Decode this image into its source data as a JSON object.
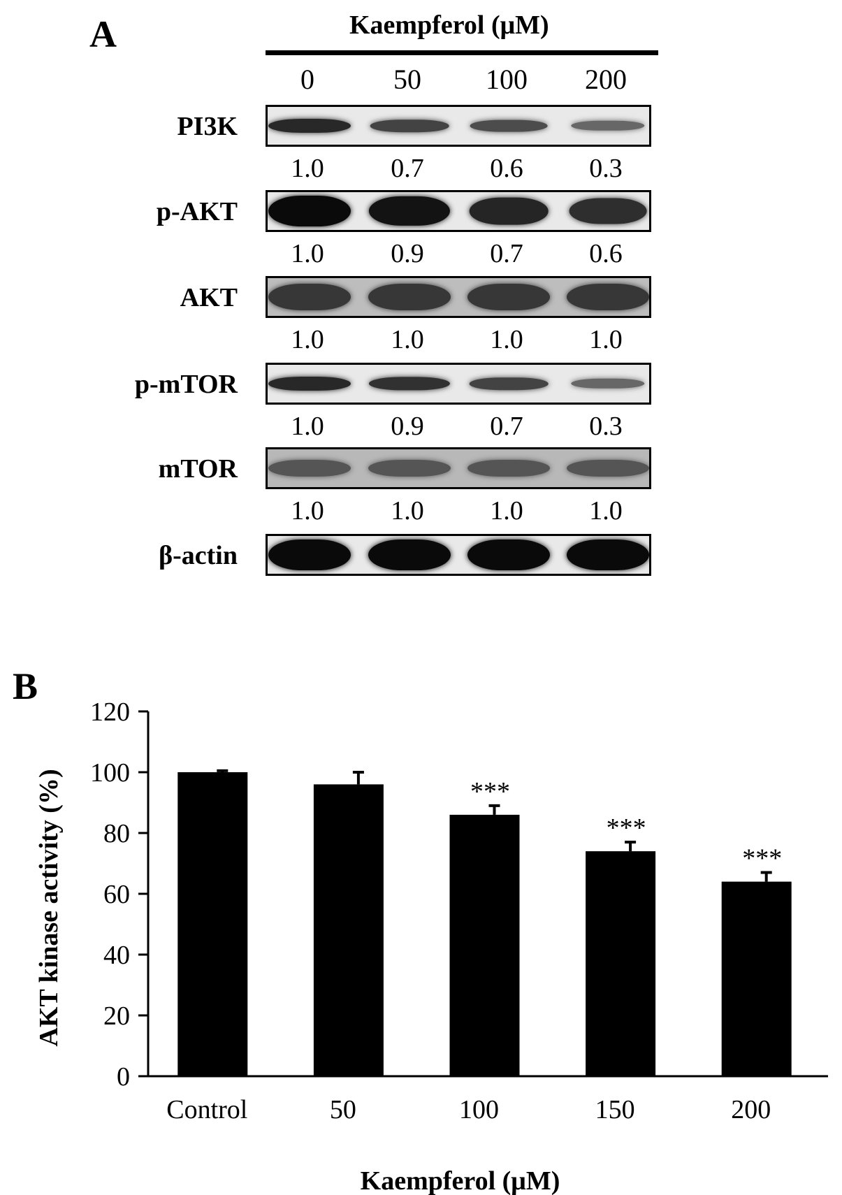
{
  "panel_a": {
    "label": "A",
    "header": "Kaempferol  (μM)",
    "lanes": [
      "0",
      "50",
      "100",
      "200"
    ],
    "rows": [
      {
        "protein": "PI3K",
        "ratios": [
          "1.0",
          "0.7",
          "0.6",
          "0.3"
        ],
        "intensity": [
          1.0,
          0.7,
          0.6,
          0.3
        ],
        "style": "thin"
      },
      {
        "protein": "p-AKT",
        "ratios": [
          "1.0",
          "0.9",
          "0.7",
          "0.6"
        ],
        "intensity": [
          1.0,
          0.9,
          0.7,
          0.6
        ],
        "style": "thick"
      },
      {
        "protein": "AKT",
        "ratios": [
          "1.0",
          "1.0",
          "1.0",
          "1.0"
        ],
        "intensity": [
          1.0,
          1.0,
          1.0,
          1.0
        ],
        "style": "medium"
      },
      {
        "protein": "p-mTOR",
        "ratios": [
          "1.0",
          "0.9",
          "0.7",
          "0.3"
        ],
        "intensity": [
          1.0,
          0.9,
          0.7,
          0.3
        ],
        "style": "thin"
      },
      {
        "protein": "mTOR",
        "ratios": [
          "1.0",
          "1.0",
          "1.0",
          "1.0"
        ],
        "intensity": [
          1.0,
          1.0,
          1.0,
          1.0
        ],
        "style": "faint"
      },
      {
        "protein": "β-actin",
        "ratios": [],
        "intensity": [
          1.0,
          1.0,
          1.0,
          1.0
        ],
        "style": "thick"
      }
    ]
  },
  "panel_b": {
    "label": "B"
  },
  "chart_data": {
    "type": "bar",
    "categories": [
      "Control",
      "50",
      "100",
      "150",
      "200"
    ],
    "values": [
      100,
      96,
      86,
      74,
      64
    ],
    "errors": [
      0.5,
      4,
      3,
      3,
      3
    ],
    "annotations": [
      "",
      "",
      "***",
      "***",
      "***"
    ],
    "xlabel": "Kaempferol (μM)",
    "ylabel": "AKT kinase activity (%)",
    "ylim": [
      0,
      120
    ],
    "yticks": [
      "0",
      "20",
      "40",
      "60",
      "80",
      "100",
      "120"
    ],
    "grid": false,
    "bar_color": "#000000"
  }
}
